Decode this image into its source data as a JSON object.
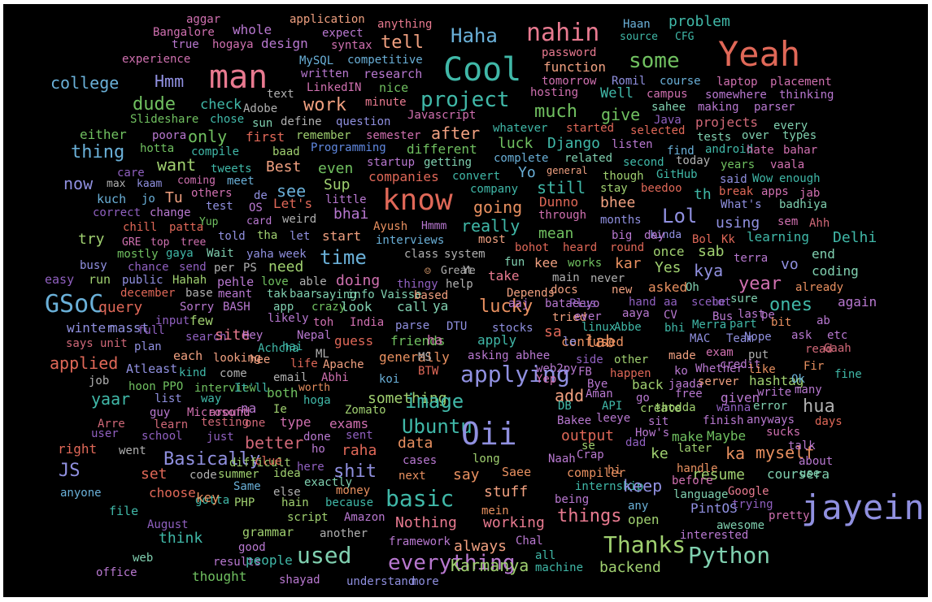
{
  "background_color": "#000000",
  "palette": {
    "pink": "#e87a90",
    "peach": "#f0a080",
    "teal": "#40b8a8",
    "sky": "#6ab0d8",
    "lav": "#9090e0",
    "violet": "#b878d0",
    "mag": "#d070b0",
    "green": "#70c060",
    "lime": "#a0d070",
    "grey": "#b0b0b0",
    "coral": "#e06858",
    "mint": "#80d0b0",
    "rose": "#d06878",
    "orange": "#e89060",
    "blue": "#6088e0",
    "purple": "#9060c0"
  },
  "words": [
    {
      "t": "aggar"
    },
    {
      "t": "application"
    },
    {
      "t": "anything"
    },
    {
      "t": "Haan"
    },
    {
      "t": "problem"
    },
    {
      "t": "Bangalore"
    },
    {
      "t": "whole"
    },
    {
      "t": "expect"
    },
    {
      "t": "Haha"
    },
    {
      "t": "nahin"
    },
    {
      "t": "source"
    },
    {
      "t": "CFG"
    },
    {
      "t": "true"
    },
    {
      "t": "hogaya"
    },
    {
      "t": "design"
    },
    {
      "t": "syntax"
    },
    {
      "t": "tell"
    },
    {
      "t": "Yeah"
    },
    {
      "t": "password"
    },
    {
      "t": "experience"
    },
    {
      "t": "MySQL"
    },
    {
      "t": "competitive"
    },
    {
      "t": "some"
    },
    {
      "t": "man"
    },
    {
      "t": "Cool"
    },
    {
      "t": "function"
    },
    {
      "t": "written"
    },
    {
      "t": "research"
    },
    {
      "t": "college"
    },
    {
      "t": "Hmm"
    },
    {
      "t": "tomorrow"
    },
    {
      "t": "Romil"
    },
    {
      "t": "course"
    },
    {
      "t": "laptop"
    },
    {
      "t": "placement"
    },
    {
      "t": "LinkedIN"
    },
    {
      "t": "nice"
    },
    {
      "t": "hosting"
    },
    {
      "t": "text"
    },
    {
      "t": "Well"
    },
    {
      "t": "campus"
    },
    {
      "t": "somewhere"
    },
    {
      "t": "thinking"
    },
    {
      "t": "project"
    },
    {
      "t": "dude"
    },
    {
      "t": "check"
    },
    {
      "t": "work"
    },
    {
      "t": "minute"
    },
    {
      "t": "sahee"
    },
    {
      "t": "making"
    },
    {
      "t": "parser"
    },
    {
      "t": "Adobe"
    },
    {
      "t": "much"
    },
    {
      "t": "give"
    },
    {
      "t": "Slideshare"
    },
    {
      "t": "chose"
    },
    {
      "t": "sun"
    },
    {
      "t": "define"
    },
    {
      "t": "question"
    },
    {
      "t": "Javascript"
    },
    {
      "t": "Java"
    },
    {
      "t": "projects"
    },
    {
      "t": "every"
    },
    {
      "t": "whatever"
    },
    {
      "t": "started"
    },
    {
      "t": "selected"
    },
    {
      "t": "either"
    },
    {
      "t": "poora"
    },
    {
      "t": "only"
    },
    {
      "t": "first"
    },
    {
      "t": "remember"
    },
    {
      "t": "semester"
    },
    {
      "t": "after"
    },
    {
      "t": "tests"
    },
    {
      "t": "over"
    },
    {
      "t": "types"
    },
    {
      "t": "thing"
    },
    {
      "t": "hotta"
    },
    {
      "t": "compile"
    },
    {
      "t": "baad"
    },
    {
      "t": "Programming"
    },
    {
      "t": "different"
    },
    {
      "t": "luck"
    },
    {
      "t": "Django"
    },
    {
      "t": "listen"
    },
    {
      "t": "find"
    },
    {
      "t": "android"
    },
    {
      "t": "hate"
    },
    {
      "t": "bahar"
    },
    {
      "t": "want"
    },
    {
      "t": "startup"
    },
    {
      "t": "getting"
    },
    {
      "t": "complete"
    },
    {
      "t": "related"
    },
    {
      "t": "second"
    },
    {
      "t": "today"
    },
    {
      "t": "years"
    },
    {
      "t": "vaala"
    },
    {
      "t": "care"
    },
    {
      "t": "tweets"
    },
    {
      "t": "Best"
    },
    {
      "t": "even"
    },
    {
      "t": "Yo"
    },
    {
      "t": "general"
    },
    {
      "t": "now"
    },
    {
      "t": "max"
    },
    {
      "t": "kaam"
    },
    {
      "t": "coming"
    },
    {
      "t": "meet"
    },
    {
      "t": "companies"
    },
    {
      "t": "convert"
    },
    {
      "t": "though"
    },
    {
      "t": "GitHub"
    },
    {
      "t": "said"
    },
    {
      "t": "Wow"
    },
    {
      "t": "enough"
    },
    {
      "t": "see"
    },
    {
      "t": "Sup"
    },
    {
      "t": "still"
    },
    {
      "t": "stay"
    },
    {
      "t": "beedoo"
    },
    {
      "t": "th"
    },
    {
      "t": "break"
    },
    {
      "t": "apps"
    },
    {
      "t": "jab"
    },
    {
      "t": "kuch"
    },
    {
      "t": "jo"
    },
    {
      "t": "Tu"
    },
    {
      "t": "others"
    },
    {
      "t": "de"
    },
    {
      "t": "know"
    },
    {
      "t": "company"
    },
    {
      "t": "Dunno"
    },
    {
      "t": "bhee"
    },
    {
      "t": "test"
    },
    {
      "t": "OS"
    },
    {
      "t": "Let's"
    },
    {
      "t": "little"
    },
    {
      "t": "going"
    },
    {
      "t": "What's"
    },
    {
      "t": "badhiya"
    },
    {
      "t": "correct"
    },
    {
      "t": "change"
    },
    {
      "t": "bhai"
    },
    {
      "t": "through"
    },
    {
      "t": "Lol"
    },
    {
      "t": "months"
    },
    {
      "t": "Yup"
    },
    {
      "t": "card"
    },
    {
      "t": "weird"
    },
    {
      "t": "chill"
    },
    {
      "t": "patta"
    },
    {
      "t": "really"
    },
    {
      "t": "using"
    },
    {
      "t": "sem"
    },
    {
      "t": "Ahh"
    },
    {
      "t": "Ayush"
    },
    {
      "t": "Hmmm"
    },
    {
      "t": "mean"
    },
    {
      "t": "kinda"
    },
    {
      "t": "try"
    },
    {
      "t": "told"
    },
    {
      "t": "tha"
    },
    {
      "t": "let"
    },
    {
      "t": "start"
    },
    {
      "t": "big"
    },
    {
      "t": "day"
    },
    {
      "t": "Bol"
    },
    {
      "t": "Kk"
    },
    {
      "t": "learning"
    },
    {
      "t": "Delhi"
    },
    {
      "t": "GRE"
    },
    {
      "t": "top"
    },
    {
      "t": "tree"
    },
    {
      "t": "interviews"
    },
    {
      "t": "most"
    },
    {
      "t": "bohot"
    },
    {
      "t": "heard"
    },
    {
      "t": "round"
    },
    {
      "t": "mostly"
    },
    {
      "t": "gaya"
    },
    {
      "t": "Wait"
    },
    {
      "t": "yaha"
    },
    {
      "t": "week"
    },
    {
      "t": "time"
    },
    {
      "t": "class"
    },
    {
      "t": "system"
    },
    {
      "t": "once"
    },
    {
      "t": "sab"
    },
    {
      "t": "terra"
    },
    {
      "t": "end"
    },
    {
      "t": "busy"
    },
    {
      "t": "chance"
    },
    {
      "t": "send"
    },
    {
      "t": "per"
    },
    {
      "t": "PS"
    },
    {
      "t": "need"
    },
    {
      "t": "fun"
    },
    {
      "t": "kee"
    },
    {
      "t": "works"
    },
    {
      "t": "kar"
    },
    {
      "t": "vo"
    },
    {
      "t": "Great"
    },
    {
      "t": "Ye"
    },
    {
      "t": "Yes"
    },
    {
      "t": "kya"
    },
    {
      "t": "coding"
    },
    {
      "t": "easy"
    },
    {
      "t": "run"
    },
    {
      "t": "public"
    },
    {
      "t": "Hahah"
    },
    {
      "t": "take"
    },
    {
      "t": "main"
    },
    {
      "t": "never"
    },
    {
      "t": "year"
    },
    {
      "t": "pehle"
    },
    {
      "t": "love"
    },
    {
      "t": "able"
    },
    {
      "t": "doing"
    },
    {
      "t": "thingy"
    },
    {
      "t": "help"
    },
    {
      "t": "already"
    },
    {
      "t": "december"
    },
    {
      "t": "base"
    },
    {
      "t": "meant"
    },
    {
      "t": "tak"
    },
    {
      "t": "baar"
    },
    {
      "t": "saying"
    },
    {
      "t": "info"
    },
    {
      "t": "Vaisse"
    },
    {
      "t": "based"
    },
    {
      "t": "Depends"
    },
    {
      "t": "docs"
    },
    {
      "t": "new"
    },
    {
      "t": "asked"
    },
    {
      "t": "Oh"
    },
    {
      "t": "GSoC"
    },
    {
      "t": "query"
    },
    {
      "t": "Sorry"
    },
    {
      "t": "BASH"
    },
    {
      "t": "app"
    },
    {
      "t": "crazy"
    },
    {
      "t": "look"
    },
    {
      "t": "call"
    },
    {
      "t": "ya"
    },
    {
      "t": "lucky"
    },
    {
      "t": "aaj"
    },
    {
      "t": "bataeeyo"
    },
    {
      "t": "Plus"
    },
    {
      "t": "hand"
    },
    {
      "t": "aa"
    },
    {
      "t": "scene"
    },
    {
      "t": "lot"
    },
    {
      "t": "sure"
    },
    {
      "t": "ones"
    },
    {
      "t": "again"
    },
    {
      "t": "input"
    },
    {
      "t": "few"
    },
    {
      "t": "likely"
    },
    {
      "t": "tried"
    },
    {
      "t": "ever"
    },
    {
      "t": "aaya"
    },
    {
      "t": "CV"
    },
    {
      "t": "Bus"
    },
    {
      "t": "last"
    },
    {
      "t": "pe"
    },
    {
      "t": "winter"
    },
    {
      "t": "masst"
    },
    {
      "t": "full"
    },
    {
      "t": "toh"
    },
    {
      "t": "India"
    },
    {
      "t": "parse"
    },
    {
      "t": "DTU"
    },
    {
      "t": "stocks"
    },
    {
      "t": "linux"
    },
    {
      "t": "Abbe"
    },
    {
      "t": "bhi"
    },
    {
      "t": "Merra"
    },
    {
      "t": "part"
    },
    {
      "t": "bit"
    },
    {
      "t": "ab"
    },
    {
      "t": "search"
    },
    {
      "t": "site"
    },
    {
      "t": "Hey"
    },
    {
      "t": "Nepal"
    },
    {
      "t": "sa"
    },
    {
      "t": "MAC"
    },
    {
      "t": "Team"
    },
    {
      "t": "Nope"
    },
    {
      "t": "ask"
    },
    {
      "t": "etc"
    },
    {
      "t": "says"
    },
    {
      "t": "unit"
    },
    {
      "t": "plan"
    },
    {
      "t": "Achcha"
    },
    {
      "t": "hai"
    },
    {
      "t": "guess"
    },
    {
      "t": "friends"
    },
    {
      "t": "ha"
    },
    {
      "t": "apply"
    },
    {
      "t": "confused"
    },
    {
      "t": "lab"
    },
    {
      "t": "le"
    },
    {
      "t": "exam"
    },
    {
      "t": "read"
    },
    {
      "t": "Gaah"
    },
    {
      "t": "each"
    },
    {
      "t": "looking"
    },
    {
      "t": "hee"
    },
    {
      "t": "ML"
    },
    {
      "t": "generally"
    },
    {
      "t": "MS"
    },
    {
      "t": "asking"
    },
    {
      "t": "abhee"
    },
    {
      "t": "put"
    },
    {
      "t": "applied"
    },
    {
      "t": "life"
    },
    {
      "t": "Apache"
    },
    {
      "t": "side"
    },
    {
      "t": "other"
    },
    {
      "t": "made"
    },
    {
      "t": "Atleast"
    },
    {
      "t": "kind"
    },
    {
      "t": "come"
    },
    {
      "t": "BTW"
    },
    {
      "t": "web2py"
    },
    {
      "t": "credit"
    },
    {
      "t": "like"
    },
    {
      "t": "Fir"
    },
    {
      "t": "applying"
    },
    {
      "t": "FB"
    },
    {
      "t": "happen"
    },
    {
      "t": "ko"
    },
    {
      "t": "Whether"
    },
    {
      "t": "email"
    },
    {
      "t": "Abhi"
    },
    {
      "t": "Yep"
    },
    {
      "t": "job"
    },
    {
      "t": "hoon"
    },
    {
      "t": "PPO"
    },
    {
      "t": "interview"
    },
    {
      "t": "It'll"
    },
    {
      "t": "koi"
    },
    {
      "t": "Bye"
    },
    {
      "t": "back"
    },
    {
      "t": "jaada"
    },
    {
      "t": "server"
    },
    {
      "t": "hashtag"
    },
    {
      "t": "Ok"
    },
    {
      "t": "fine"
    },
    {
      "t": "worth"
    },
    {
      "t": "both"
    },
    {
      "t": "Aman"
    },
    {
      "t": "free"
    },
    {
      "t": "write"
    },
    {
      "t": "many"
    },
    {
      "t": "yaar"
    },
    {
      "t": "list"
    },
    {
      "t": "way"
    },
    {
      "t": "something"
    },
    {
      "t": "go"
    },
    {
      "t": "given"
    },
    {
      "t": "image"
    },
    {
      "t": "add"
    },
    {
      "t": "hoga"
    },
    {
      "t": "DB"
    },
    {
      "t": "API"
    },
    {
      "t": "guy"
    },
    {
      "t": "Microsoft"
    },
    {
      "t": "around"
    },
    {
      "t": "na"
    },
    {
      "t": "Ie"
    },
    {
      "t": "Zomato"
    },
    {
      "t": "hua"
    },
    {
      "t": "create"
    },
    {
      "t": "thodda"
    },
    {
      "t": "wanna"
    },
    {
      "t": "error"
    },
    {
      "t": "Arre"
    },
    {
      "t": "learn"
    },
    {
      "t": "testing"
    },
    {
      "t": "one"
    },
    {
      "t": "type"
    },
    {
      "t": "exams"
    },
    {
      "t": "Ubuntu"
    },
    {
      "t": "Bakee"
    },
    {
      "t": "leeye"
    },
    {
      "t": "sit"
    },
    {
      "t": "finish"
    },
    {
      "t": "anyways"
    },
    {
      "t": "days"
    },
    {
      "t": "user"
    },
    {
      "t": "school"
    },
    {
      "t": "just"
    },
    {
      "t": "done"
    },
    {
      "t": "sent"
    },
    {
      "t": "Oii"
    },
    {
      "t": "output"
    },
    {
      "t": "How's"
    },
    {
      "t": "make"
    },
    {
      "t": "Maybe"
    },
    {
      "t": "sucks"
    },
    {
      "t": "better"
    },
    {
      "t": "data"
    },
    {
      "t": "dad"
    },
    {
      "t": "right"
    },
    {
      "t": "went"
    },
    {
      "t": "ho"
    },
    {
      "t": "raha"
    },
    {
      "t": "se"
    },
    {
      "t": "ke"
    },
    {
      "t": "later"
    },
    {
      "t": "ka"
    },
    {
      "t": "myself"
    },
    {
      "t": "talk"
    },
    {
      "t": "Basically"
    },
    {
      "t": "difficult"
    },
    {
      "t": "clue"
    },
    {
      "t": "cases"
    },
    {
      "t": "long"
    },
    {
      "t": "Naah"
    },
    {
      "t": "Crap"
    },
    {
      "t": "about"
    },
    {
      "t": "here"
    },
    {
      "t": "hi"
    },
    {
      "t": "handle"
    },
    {
      "t": "JS"
    },
    {
      "t": "set"
    },
    {
      "t": "code"
    },
    {
      "t": "summer"
    },
    {
      "t": "idea"
    },
    {
      "t": "exactly"
    },
    {
      "t": "shit"
    },
    {
      "t": "next"
    },
    {
      "t": "say"
    },
    {
      "t": "Saee"
    },
    {
      "t": "compiler"
    },
    {
      "t": "resume"
    },
    {
      "t": "coursera"
    },
    {
      "t": "use"
    },
    {
      "t": "Same"
    },
    {
      "t": "money"
    },
    {
      "t": "internship"
    },
    {
      "t": "keep"
    },
    {
      "t": "before"
    },
    {
      "t": "Google"
    },
    {
      "t": "anyone"
    },
    {
      "t": "choose"
    },
    {
      "t": "else"
    },
    {
      "t": "stuff"
    },
    {
      "t": "being"
    },
    {
      "t": "language"
    },
    {
      "t": "gotta"
    },
    {
      "t": "basic"
    },
    {
      "t": "trying"
    },
    {
      "t": "file"
    },
    {
      "t": "PHP"
    },
    {
      "t": "hain"
    },
    {
      "t": "because"
    },
    {
      "t": "any"
    },
    {
      "t": "PintOS"
    },
    {
      "t": "jayein"
    },
    {
      "t": "mein"
    },
    {
      "t": "key"
    },
    {
      "t": "script"
    },
    {
      "t": "Amazon"
    },
    {
      "t": "things"
    },
    {
      "t": "pretty"
    },
    {
      "t": "August"
    },
    {
      "t": "Nothing"
    },
    {
      "t": "working"
    },
    {
      "t": "open"
    },
    {
      "t": "awesome"
    },
    {
      "t": "grammar"
    },
    {
      "t": "another"
    },
    {
      "t": "interested"
    },
    {
      "t": "think"
    },
    {
      "t": "good"
    },
    {
      "t": "framework"
    },
    {
      "t": "Chal"
    },
    {
      "t": "always"
    },
    {
      "t": "Thanks"
    },
    {
      "t": "web"
    },
    {
      "t": "used"
    },
    {
      "t": "all"
    },
    {
      "t": "Python"
    },
    {
      "t": "results"
    },
    {
      "t": "people"
    },
    {
      "t": "everything"
    },
    {
      "t": "Karmanya"
    },
    {
      "t": "machine"
    },
    {
      "t": "backend"
    },
    {
      "t": "office"
    },
    {
      "t": "thought"
    },
    {
      "t": "shayad"
    },
    {
      "t": "understand"
    },
    {
      "t": "more"
    }
  ]
}
